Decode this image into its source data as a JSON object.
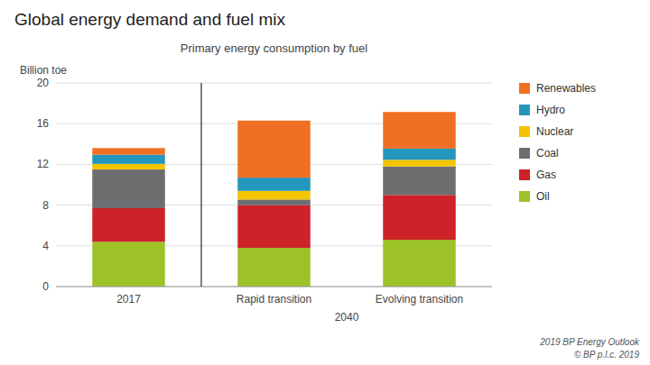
{
  "chart_data": {
    "type": "bar",
    "stacked": true,
    "title": "Global energy demand and fuel mix",
    "subtitle": "Primary energy consumption by fuel",
    "ylabel": "Billion toe",
    "annotations": [
      "2040",
      "2019 BP Energy Outlook",
      "© BP p.l.c. 2019"
    ],
    "categories": [
      "2017",
      "Rapid transition",
      "Evolving transition"
    ],
    "series": [
      {
        "name": "Oil",
        "color": "#9DC228",
        "values": [
          4.4,
          3.8,
          4.6
        ]
      },
      {
        "name": "Gas",
        "color": "#CC2228",
        "values": [
          3.3,
          4.2,
          4.4
        ]
      },
      {
        "name": "Coal",
        "color": "#6D6E70",
        "values": [
          3.8,
          0.55,
          2.8
        ]
      },
      {
        "name": "Nuclear",
        "color": "#F5C400",
        "values": [
          0.55,
          0.85,
          0.65
        ]
      },
      {
        "name": "Hydro",
        "color": "#2596BE",
        "values": [
          0.9,
          1.3,
          1.1
        ]
      },
      {
        "name": "Renewables",
        "color": "#F07023",
        "values": [
          0.65,
          5.6,
          3.6
        ]
      }
    ],
    "ylim": [
      0,
      20
    ],
    "yticks": [
      0,
      4,
      8,
      12,
      16,
      20
    ],
    "grid": true,
    "legend": "right"
  }
}
